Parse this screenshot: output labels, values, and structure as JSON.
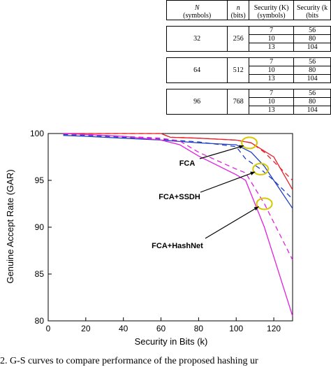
{
  "table": {
    "headers": [
      {
        "main": "N",
        "sub": "(symbols)"
      },
      {
        "main": "n",
        "sub": "(bits)"
      },
      {
        "main": "Security (K)",
        "sub": "(symbols)"
      },
      {
        "main": "Security (k",
        "sub": "(bits"
      }
    ],
    "groups": [
      {
        "N": "32",
        "n": "256",
        "rows": [
          [
            "7",
            "56"
          ],
          [
            "10",
            "80"
          ],
          [
            "13",
            "104"
          ]
        ]
      },
      {
        "N": "64",
        "n": "512",
        "rows": [
          [
            "7",
            "56"
          ],
          [
            "10",
            "80"
          ],
          [
            "13",
            "104"
          ]
        ]
      },
      {
        "N": "96",
        "n": "768",
        "rows": [
          [
            "7",
            "56"
          ],
          [
            "10",
            "80"
          ],
          [
            "13",
            "104"
          ]
        ]
      }
    ]
  },
  "chart_data": {
    "type": "line",
    "xlabel": "Security in Bits (k)",
    "ylabel": "Genuine Accept Rate (GAR)",
    "xlim": [
      0,
      130
    ],
    "ylim": [
      80,
      100
    ],
    "xticks": [
      "0",
      "20",
      "40",
      "60",
      "80",
      "100",
      "120"
    ],
    "yticks": [
      "80",
      "85",
      "90",
      "95",
      "100"
    ],
    "annotations": [
      "FCA",
      "FCA+SSDH",
      "FCA+HashNet"
    ],
    "colors": {
      "FCA": "#e8202a",
      "FCA+SSDH": "#1f3fbf",
      "FCA+HashNet": "#e020e0",
      "marker": "#d8c800"
    },
    "series": [
      {
        "group": "FCA",
        "style": "solid",
        "x": [
          8,
          20,
          40,
          60,
          65,
          80,
          100,
          108,
          120,
          130
        ],
        "y": [
          100,
          100,
          100,
          100,
          99.6,
          99.5,
          99.3,
          99,
          97.5,
          94
        ]
      },
      {
        "group": "FCA",
        "style": "dashed",
        "x": [
          8,
          20,
          40,
          60,
          65,
          80,
          100,
          108,
          115,
          130
        ],
        "y": [
          100,
          100,
          100,
          100,
          99.6,
          99.5,
          99.3,
          99,
          98,
          95
        ]
      },
      {
        "group": "FCA+SSDH",
        "style": "solid",
        "x": [
          8,
          20,
          40,
          60,
          80,
          100,
          108,
          115,
          120,
          130
        ],
        "y": [
          99.8,
          99.7,
          99.5,
          99.3,
          99,
          98.8,
          98,
          96.5,
          95,
          92
        ]
      },
      {
        "group": "FCA+SSDH",
        "style": "dashed",
        "x": [
          8,
          20,
          40,
          60,
          80,
          100,
          105,
          113,
          120,
          130
        ],
        "y": [
          99.9,
          99.8,
          99.6,
          99.4,
          99.1,
          98.6,
          97.3,
          96.2,
          95,
          93
        ]
      },
      {
        "group": "FCA+HashNet",
        "style": "solid",
        "x": [
          8,
          20,
          40,
          60,
          70,
          80,
          100,
          105,
          115,
          130
        ],
        "y": [
          100,
          99.9,
          99.7,
          99.3,
          98.8,
          97.6,
          95.6,
          95,
          90,
          80.5
        ]
      },
      {
        "group": "FCA+HashNet",
        "style": "dashed",
        "x": [
          8,
          20,
          40,
          60,
          70,
          80,
          100,
          105,
          115,
          130
        ],
        "y": [
          100,
          99.9,
          99.7,
          99.5,
          99.2,
          98,
          96.2,
          95.8,
          92.5,
          86.5
        ]
      }
    ],
    "markers": [
      {
        "x": 107,
        "y": 99
      },
      {
        "x": 113,
        "y": 96.2
      },
      {
        "x": 115,
        "y": 92.5
      }
    ]
  },
  "caption": "2.   G-S curves to compare performance of the proposed hashing ur"
}
